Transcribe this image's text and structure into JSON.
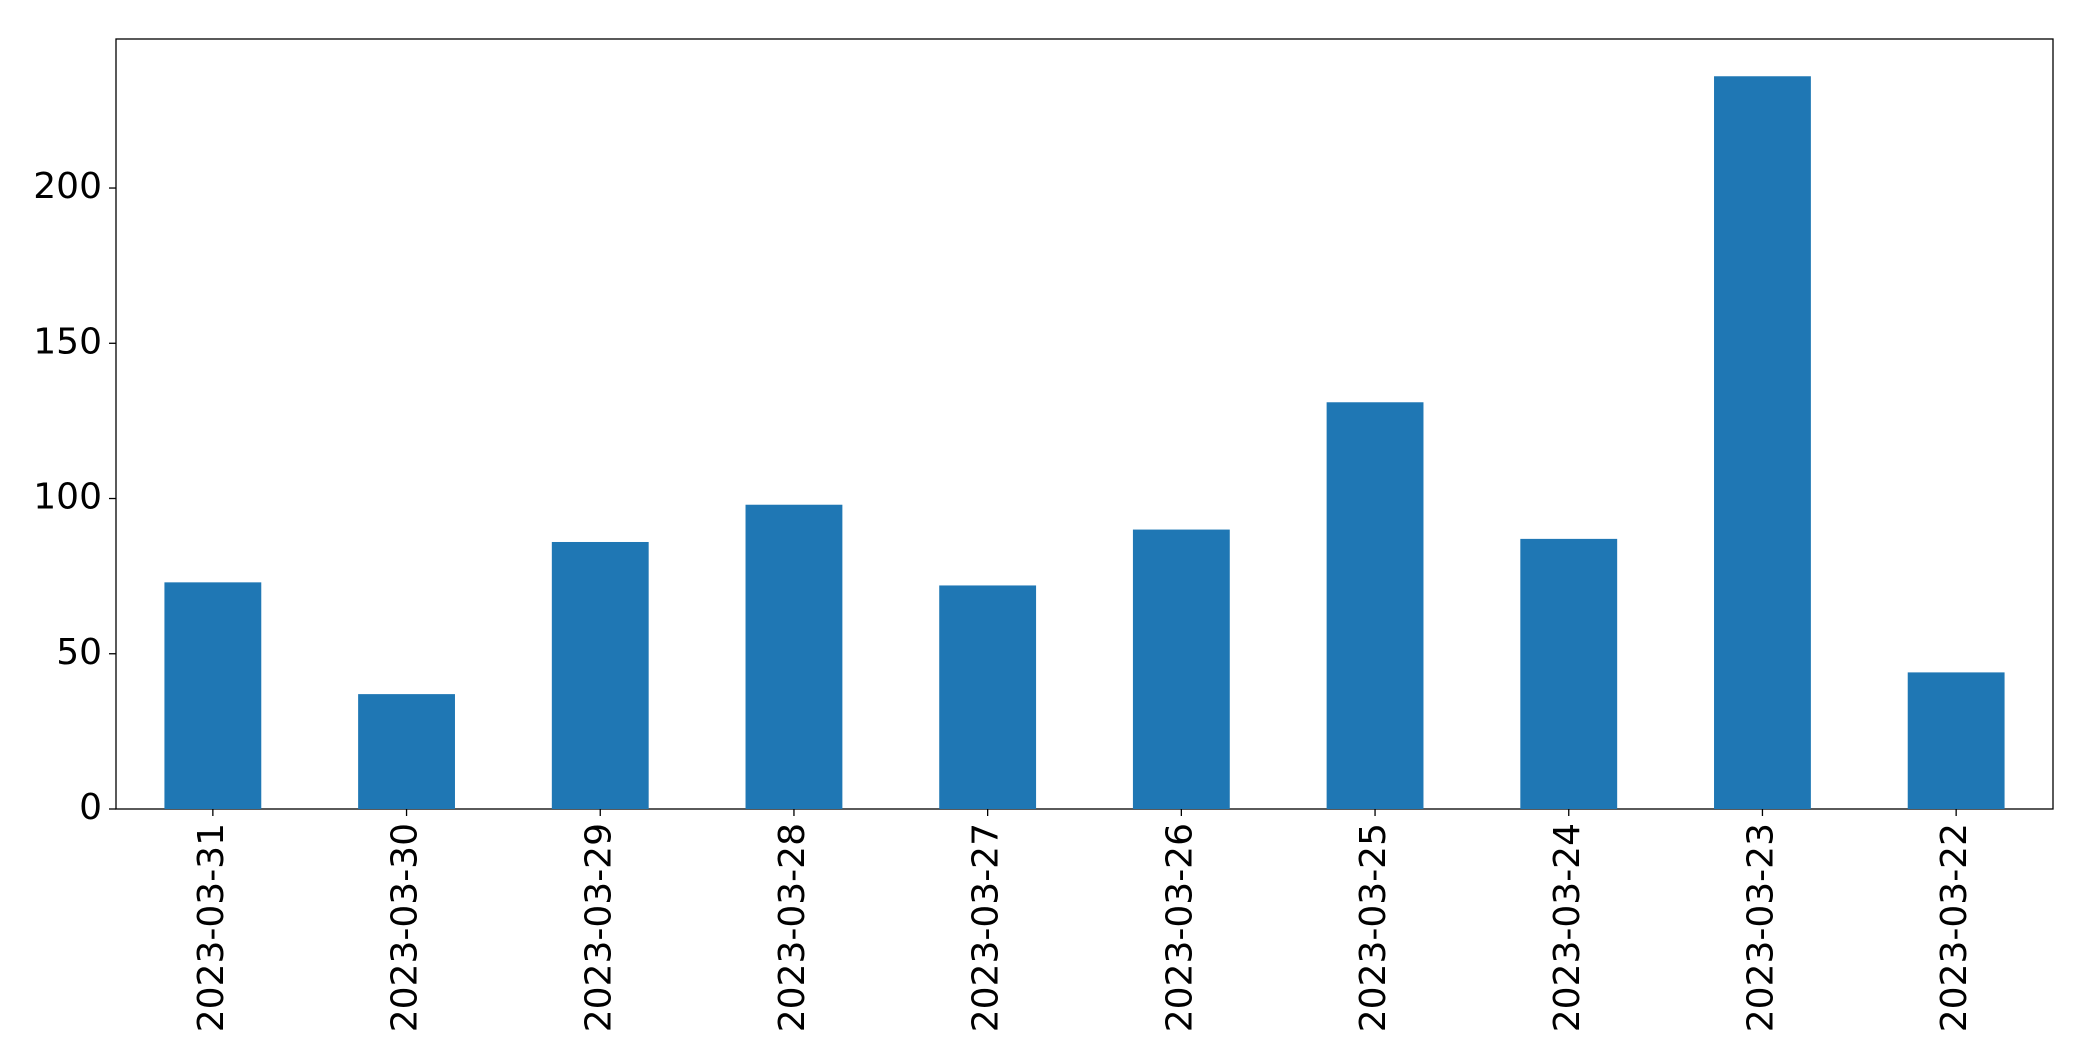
{
  "chart_data": {
    "type": "bar",
    "categories": [
      "2023-03-31",
      "2023-03-30",
      "2023-03-29",
      "2023-03-28",
      "2023-03-27",
      "2023-03-26",
      "2023-03-25",
      "2023-03-24",
      "2023-03-23",
      "2023-03-22"
    ],
    "values": [
      73,
      37,
      86,
      98,
      72,
      90,
      131,
      87,
      236,
      44
    ],
    "color": "#1f77b4",
    "ylim": [
      0,
      248
    ],
    "yticks": [
      0,
      50,
      100,
      150,
      200
    ],
    "grid": false
  }
}
